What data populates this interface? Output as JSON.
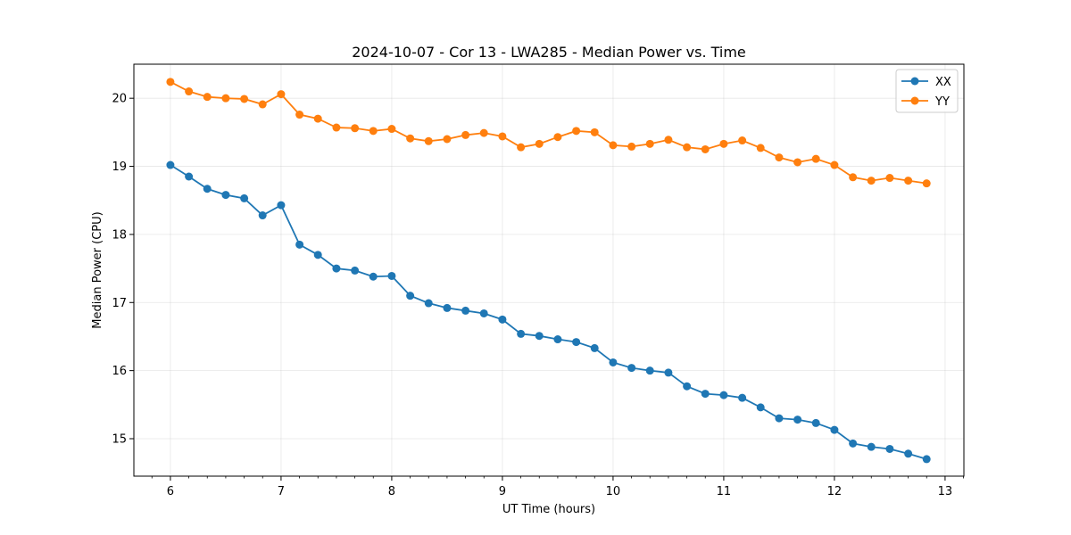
{
  "chart_data": {
    "type": "line",
    "title": "2024-10-07 - Cor 13 - LWA285 - Median Power vs. Time",
    "xlabel": "UT Time (hours)",
    "ylabel": "Median Power (CPU)",
    "xlim": [
      5.67,
      13.17
    ],
    "ylim": [
      14.45,
      20.5
    ],
    "xticks": [
      6,
      7,
      8,
      9,
      10,
      11,
      12,
      13
    ],
    "yticks": [
      15,
      16,
      17,
      18,
      19,
      20
    ],
    "grid": true,
    "legend_position": "top-right",
    "x": [
      6.0,
      6.167,
      6.333,
      6.5,
      6.667,
      6.833,
      7.0,
      7.167,
      7.333,
      7.5,
      7.667,
      7.833,
      8.0,
      8.167,
      8.333,
      8.5,
      8.667,
      8.833,
      9.0,
      9.167,
      9.333,
      9.5,
      9.667,
      9.833,
      10.0,
      10.167,
      10.333,
      10.5,
      10.667,
      10.833,
      11.0,
      11.167,
      11.333,
      11.5,
      11.667,
      11.833,
      12.0,
      12.167,
      12.333,
      12.5,
      12.667,
      12.833
    ],
    "series": [
      {
        "name": "XX",
        "color": "#1f77b4",
        "values": [
          19.02,
          18.85,
          18.67,
          18.58,
          18.53,
          18.28,
          18.43,
          17.85,
          17.7,
          17.5,
          17.47,
          17.38,
          17.39,
          17.1,
          16.99,
          16.92,
          16.88,
          16.84,
          16.75,
          16.54,
          16.51,
          16.46,
          16.42,
          16.33,
          16.12,
          16.04,
          16.0,
          15.97,
          15.77,
          15.66,
          15.64,
          15.6,
          15.46,
          15.3,
          15.28,
          15.23,
          15.13,
          14.93,
          14.88,
          14.85,
          14.78,
          14.7
        ]
      },
      {
        "name": "YY",
        "color": "#ff7f0e",
        "values": [
          20.24,
          20.1,
          20.02,
          20.0,
          19.99,
          19.91,
          20.06,
          19.76,
          19.7,
          19.57,
          19.56,
          19.52,
          19.55,
          19.41,
          19.37,
          19.4,
          19.46,
          19.49,
          19.44,
          19.28,
          19.33,
          19.43,
          19.52,
          19.5,
          19.31,
          19.29,
          19.33,
          19.39,
          19.28,
          19.25,
          19.33,
          19.38,
          19.27,
          19.13,
          19.06,
          19.11,
          19.02,
          18.84,
          18.79,
          18.83,
          18.79,
          18.75
        ]
      }
    ]
  }
}
